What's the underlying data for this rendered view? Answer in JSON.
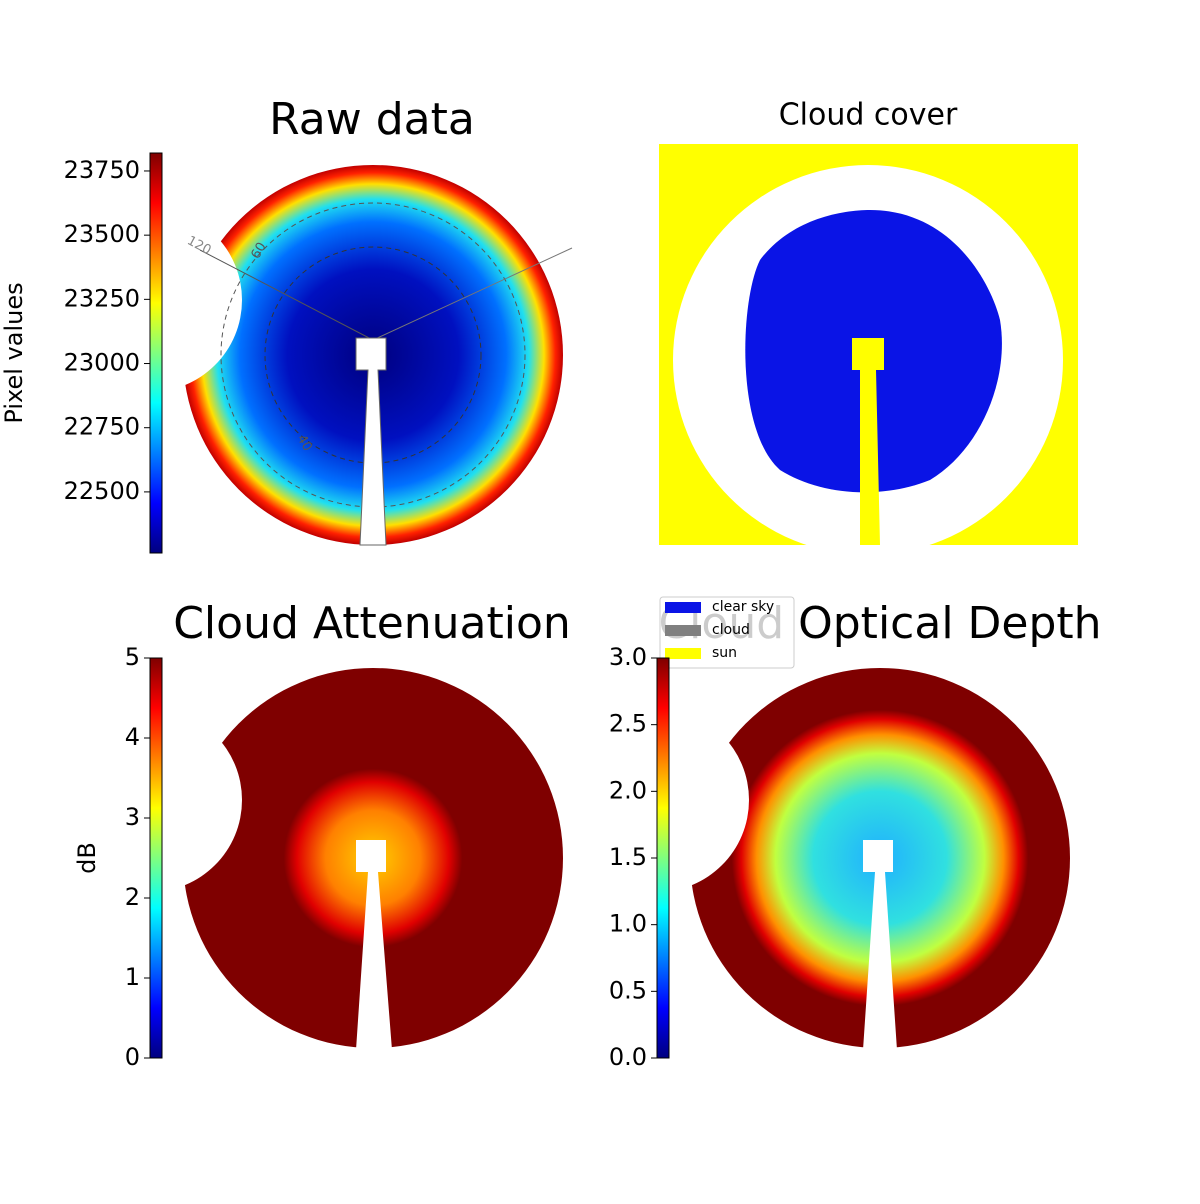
{
  "chart_data": [
    {
      "type": "image",
      "title": "Raw data",
      "colormap": "jet",
      "ylabel": "Pixel values",
      "ylim": [
        22262,
        23820
      ],
      "yticks": [
        22500,
        22750,
        23000,
        23250,
        23500,
        23750
      ],
      "annotations": [
        "120",
        "60",
        "40"
      ]
    },
    {
      "type": "image",
      "title": "Cloud cover",
      "series": [
        {
          "name": "clear sky",
          "color": "#0a14e6"
        },
        {
          "name": "cloud",
          "color": "#808080"
        },
        {
          "name": "sun",
          "color": "#ffff00"
        }
      ]
    },
    {
      "type": "image",
      "title": "Cloud Attenuation",
      "colormap": "jet",
      "ylabel": "dB",
      "ylim": [
        0,
        5
      ],
      "yticks": [
        0,
        1,
        2,
        3,
        4,
        5
      ]
    },
    {
      "type": "image",
      "title": "Cloud Optical Depth",
      "colormap": "jet",
      "ylim": [
        0,
        3
      ],
      "yticks": [
        {
          "value": 0,
          "label": "0.0"
        },
        0.5,
        {
          "value": 1,
          "label": "1.0"
        },
        1.5,
        {
          "value": 2,
          "label": "2.0"
        },
        2.5,
        {
          "value": 3,
          "label": "3.0"
        }
      ]
    }
  ]
}
